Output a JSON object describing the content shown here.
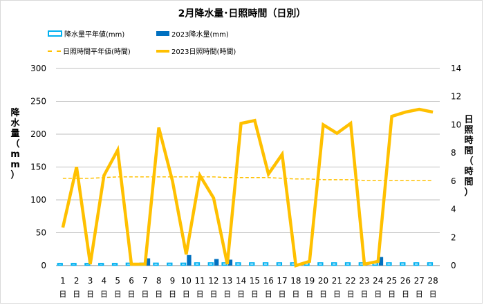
{
  "chart_data": {
    "type": "bar+line",
    "title": "2月降水量･日照時間（日別）",
    "ylabel_left": "降水量（mm）",
    "ylabel_right": "日照時間（時間）",
    "ylim_left": [
      0,
      300
    ],
    "ylim_right": [
      0,
      14
    ],
    "yticks_left": [
      "0",
      "50",
      "100",
      "150",
      "200",
      "250",
      "300"
    ],
    "yticks_right": [
      "0",
      "2",
      "4",
      "6",
      "8",
      "10",
      "12",
      "14"
    ],
    "day_suffix": "日",
    "categories": [
      "1",
      "2",
      "3",
      "4",
      "5",
      "6",
      "7",
      "8",
      "9",
      "10",
      "11",
      "12",
      "13",
      "14",
      "15",
      "16",
      "17",
      "18",
      "19",
      "20",
      "21",
      "22",
      "23",
      "24",
      "25",
      "26",
      "27",
      "28"
    ],
    "legend": {
      "bar_avg": "降水量平年値(mm)",
      "bar_2023": "2023降水量(mm)",
      "line_avg": "日照時間平年値(時間)",
      "line_2023": "2023日照時間(時間)"
    },
    "series": [
      {
        "name": "降水量平年値(mm)",
        "axis": "left",
        "kind": "bar",
        "values": [
          3,
          3,
          3,
          3,
          3,
          3.5,
          3.5,
          3.5,
          3.5,
          3.5,
          4,
          4,
          4,
          4,
          4,
          4,
          4,
          4,
          4,
          4,
          4,
          4,
          4,
          4,
          4,
          4,
          4,
          4
        ]
      },
      {
        "name": "2023降水量(mm)",
        "axis": "left",
        "kind": "bar",
        "values": [
          0,
          0,
          0,
          0,
          0,
          0,
          11,
          0,
          0,
          16,
          0,
          10,
          9,
          0,
          0,
          0,
          0,
          0,
          0,
          0,
          0,
          0,
          0,
          13,
          0,
          0,
          0,
          0
        ]
      },
      {
        "name": "日照時間平年値(時間)",
        "axis": "right",
        "kind": "dashed-line",
        "values": [
          6.2,
          6.2,
          6.2,
          6.25,
          6.3,
          6.3,
          6.3,
          6.3,
          6.3,
          6.3,
          6.3,
          6.3,
          6.25,
          6.25,
          6.25,
          6.25,
          6.2,
          6.15,
          6.15,
          6.1,
          6.1,
          6.1,
          6.05,
          6.05,
          6.05,
          6.05,
          6.05,
          6.05
        ]
      },
      {
        "name": "2023日照時間(時間)",
        "axis": "right",
        "kind": "line",
        "values": [
          2.7,
          7.0,
          0.1,
          6.4,
          8.2,
          0.1,
          0.1,
          9.8,
          6.0,
          0.8,
          6.4,
          4.8,
          0.1,
          10.1,
          10.3,
          6.5,
          7.9,
          0.0,
          0.3,
          10.0,
          9.4,
          10.1,
          0.1,
          0.3,
          10.6,
          10.9,
          11.1,
          10.9
        ]
      }
    ],
    "colors": {
      "bar_avg": "#00b0f0",
      "bar_2023": "#0070c0",
      "line": "#ffc000",
      "grid": "#bfbfbf",
      "axis": "#868686"
    },
    "grid": true
  }
}
